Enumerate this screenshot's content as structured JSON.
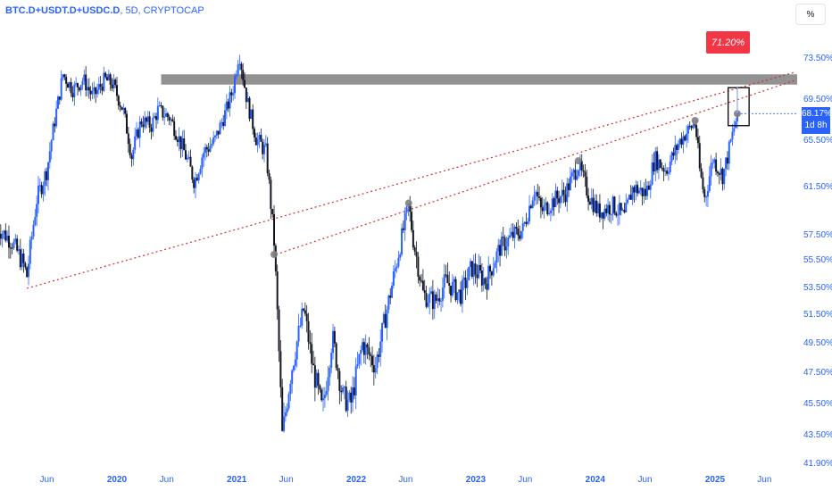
{
  "header": {
    "symbol": "BTC.D+USDT.D+USDC.D",
    "sep": ", ",
    "interval": "5D",
    "source": "CRYPTOCAP"
  },
  "unit_label": "%",
  "current_price": {
    "value": "68.17%",
    "countdown": "1d 8h"
  },
  "target_label": "71.20%",
  "colors": {
    "up": "#2962ff",
    "down": "#131722",
    "resistance_band": "#7f7f7f",
    "trendline": "#d32f2f",
    "price_tag": "#2962ff",
    "target_tag": "#f23645",
    "pivot": "#808080"
  },
  "chart_data": {
    "type": "candlestick",
    "title": "",
    "symbol": "BTC.D+USDT.D+USDC.D",
    "interval": "5D",
    "exchange": "CRYPTOCAP",
    "y_unit": "%",
    "ylim": [
      41.9,
      76.5
    ],
    "y_ticks": [
      "73.50%",
      "69.50%",
      "65.50%",
      "61.50%",
      "57.50%",
      "55.50%",
      "53.50%",
      "51.50%",
      "49.50%",
      "47.50%",
      "45.50%",
      "43.50%",
      "41.90%"
    ],
    "y_tick_values": [
      73.5,
      69.5,
      65.5,
      61.5,
      57.5,
      55.5,
      53.5,
      51.5,
      49.5,
      47.5,
      45.5,
      43.5,
      41.9
    ],
    "x_ticks": [
      {
        "label": "Jun",
        "date": "2019-06-01",
        "bold": false
      },
      {
        "label": "2020",
        "date": "2020-01-01",
        "bold": true
      },
      {
        "label": "Jun",
        "date": "2020-06-01",
        "bold": false
      },
      {
        "label": "2021",
        "date": "2021-01-01",
        "bold": true
      },
      {
        "label": "Jun",
        "date": "2021-06-01",
        "bold": false
      },
      {
        "label": "2022",
        "date": "2022-01-01",
        "bold": true
      },
      {
        "label": "Jun",
        "date": "2022-06-01",
        "bold": false
      },
      {
        "label": "2023",
        "date": "2023-01-01",
        "bold": true
      },
      {
        "label": "Jun",
        "date": "2023-06-01",
        "bold": false
      },
      {
        "label": "2024",
        "date": "2024-01-01",
        "bold": true
      },
      {
        "label": "Jun",
        "date": "2024-06-01",
        "bold": false
      },
      {
        "label": "2025",
        "date": "2025-01-01",
        "bold": true
      },
      {
        "label": "Jun",
        "date": "2025-06-01",
        "bold": false
      }
    ],
    "xlim": [
      "2019-01-01",
      "2025-09-01"
    ],
    "close_path": [
      [
        "2019-01-01",
        58.2
      ],
      [
        "2019-02-15",
        57.0
      ],
      [
        "2019-03-20",
        55.3
      ],
      [
        "2019-04-01",
        54.4
      ],
      [
        "2019-05-01",
        60.5
      ],
      [
        "2019-06-01",
        63.0
      ],
      [
        "2019-06-25",
        67.5
      ],
      [
        "2019-07-20",
        72.0
      ],
      [
        "2019-08-20",
        70.5
      ],
      [
        "2019-09-20",
        71.5
      ],
      [
        "2019-10-20",
        69.8
      ],
      [
        "2019-11-25",
        71.5
      ],
      [
        "2019-12-20",
        71.0
      ],
      [
        "2020-01-20",
        68.5
      ],
      [
        "2020-02-15",
        64.2
      ],
      [
        "2020-03-15",
        67.5
      ],
      [
        "2020-04-15",
        67.0
      ],
      [
        "2020-05-05",
        68.5
      ],
      [
        "2020-06-10",
        67.8
      ],
      [
        "2020-07-01",
        66.3
      ],
      [
        "2020-08-01",
        64.0
      ],
      [
        "2020-08-25",
        62.0
      ],
      [
        "2020-09-20",
        64.5
      ],
      [
        "2020-10-25",
        65.5
      ],
      [
        "2020-11-30",
        68.5
      ],
      [
        "2020-12-20",
        70.5
      ],
      [
        "2021-01-08",
        74.2
      ],
      [
        "2021-02-01",
        69.5
      ],
      [
        "2021-03-01",
        65.8
      ],
      [
        "2021-04-01",
        64.5
      ],
      [
        "2021-04-25",
        57.0
      ],
      [
        "2021-05-20",
        43.5
      ],
      [
        "2021-06-15",
        47.5
      ],
      [
        "2021-07-25",
        52.0
      ],
      [
        "2021-08-20",
        48.0
      ],
      [
        "2021-09-20",
        45.0
      ],
      [
        "2021-10-20",
        50.0
      ],
      [
        "2021-11-20",
        46.0
      ],
      [
        "2021-12-15",
        45.5
      ],
      [
        "2022-01-20",
        49.5
      ],
      [
        "2022-03-01",
        48.0
      ],
      [
        "2022-04-01",
        51.5
      ],
      [
        "2022-05-01",
        55.0
      ],
      [
        "2022-06-10",
        60.0
      ],
      [
        "2022-06-25",
        57.0
      ],
      [
        "2022-07-25",
        53.0
      ],
      [
        "2022-08-30",
        52.5
      ],
      [
        "2022-10-01",
        54.0
      ],
      [
        "2022-11-15",
        53.0
      ],
      [
        "2022-12-20",
        55.0
      ],
      [
        "2023-02-01",
        54.0
      ],
      [
        "2023-03-15",
        56.5
      ],
      [
        "2023-04-25",
        57.5
      ],
      [
        "2023-05-25",
        58.0
      ],
      [
        "2023-06-30",
        61.5
      ],
      [
        "2023-07-20",
        59.5
      ],
      [
        "2023-08-30",
        60.5
      ],
      [
        "2023-10-01",
        61.0
      ],
      [
        "2023-11-10",
        63.5
      ],
      [
        "2023-12-10",
        61.0
      ],
      [
        "2024-01-10",
        59.5
      ],
      [
        "2024-02-25",
        60.0
      ],
      [
        "2024-03-30",
        59.0
      ],
      [
        "2024-04-25",
        61.5
      ],
      [
        "2024-06-05",
        61.0
      ],
      [
        "2024-07-01",
        64.0
      ],
      [
        "2024-08-05",
        63.0
      ],
      [
        "2024-09-15",
        65.5
      ],
      [
        "2024-10-10",
        66.5
      ],
      [
        "2024-11-01",
        67.3
      ],
      [
        "2024-11-15",
        63.0
      ],
      [
        "2024-12-01",
        60.5
      ],
      [
        "2024-12-25",
        64.0
      ],
      [
        "2025-01-25",
        62.5
      ],
      [
        "2025-02-15",
        65.0
      ],
      [
        "2025-03-10",
        68.17
      ]
    ],
    "last_value": 68.17,
    "resistance_band": {
      "low": 71.0,
      "high": 72.0
    },
    "trendlines": [
      {
        "from": [
          "2019-04-01",
          53.5
        ],
        "to": [
          "2025-09-01",
          72.2
        ]
      },
      {
        "from": [
          "2021-05-01",
          56.0
        ],
        "to": [
          "2025-09-01",
          71.4
        ]
      }
    ],
    "pivots": [
      [
        "2021-04-25",
        56.0
      ],
      [
        "2022-06-10",
        60.2
      ],
      [
        "2023-11-10",
        63.8
      ],
      [
        "2024-11-01",
        67.5
      ],
      [
        "2025-03-10",
        68.17
      ]
    ],
    "target_box": {
      "from": [
        "2025-02-10",
        67.0
      ],
      "to": [
        "2025-04-15",
        70.7
      ]
    }
  }
}
